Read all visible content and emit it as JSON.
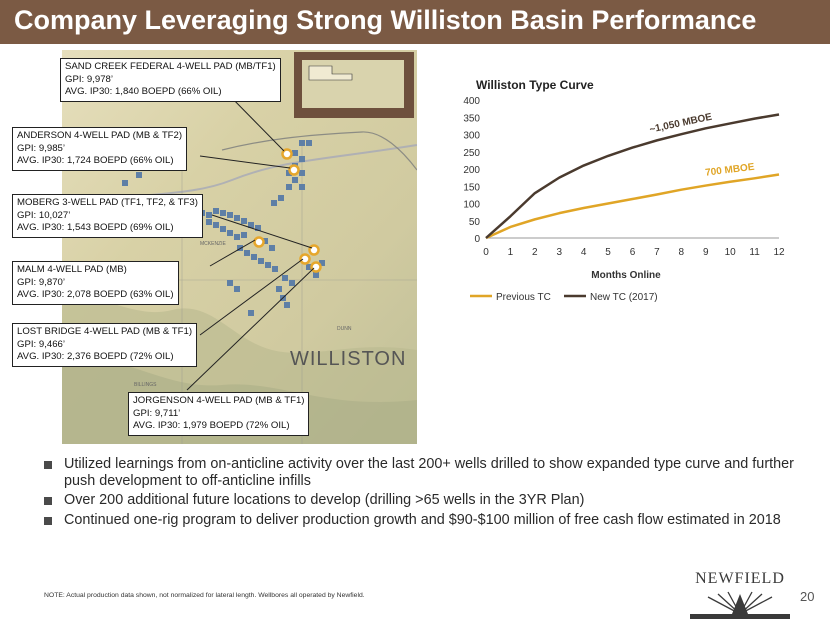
{
  "header": {
    "title": "Company Leveraging Strong Williston Basin Performance"
  },
  "map": {
    "basin_label": "WILLISTON",
    "county_mckenzie": "MCKENZIE",
    "county_dunn": "DUNN",
    "county_billings": "BILLINGS"
  },
  "callouts": [
    {
      "name": "SAND CREEK FEDERAL 4-WELL PAD (MB/TF1)",
      "gpi": "GPI: 9,978’",
      "ip30": "AVG. IP30: 1,840 BOEPD (66% OIL)"
    },
    {
      "name": "ANDERSON 4-WELL PAD (MB & TF2)",
      "gpi": "GPI: 9,985’",
      "ip30": "AVG. IP30: 1,724 BOEPD (66% OIL)"
    },
    {
      "name": "MOBERG 3-WELL PAD (TF1, TF2, & TF3)",
      "gpi": "GPI: 10,027’",
      "ip30": "AVG. IP30: 1,543 BOEPD (69% OIL)"
    },
    {
      "name": "MALM 4-WELL PAD (MB)",
      "gpi": "GPI: 9,870’",
      "ip30": "AVG. IP30: 2,078 BOEPD (63% OIL)"
    },
    {
      "name": "LOST BRIDGE 4-WELL PAD (MB & TF1)",
      "gpi": "GPI: 9,466’",
      "ip30": "AVG. IP30: 2,376 BOEPD (72% OIL)"
    },
    {
      "name": "JORGENSON 4-WELL PAD (MB & TF1)",
      "gpi": "GPI: 9,711’",
      "ip30": "AVG. IP30: 1,979 BOEPD (72% OIL)"
    }
  ],
  "chart_data": {
    "type": "line",
    "title": "Williston Type Curve",
    "xlabel": "Months Online",
    "ylabel": "",
    "x": [
      0,
      1,
      2,
      3,
      4,
      5,
      6,
      7,
      8,
      9,
      10,
      11,
      12
    ],
    "xticks": [
      "0",
      "1",
      "2",
      "3",
      "4",
      "5",
      "6",
      "7",
      "8",
      "9",
      "10",
      "11",
      "12"
    ],
    "yticks": [
      "0",
      "50",
      "100",
      "150",
      "200",
      "250",
      "300",
      "350",
      "400"
    ],
    "ylim": [
      0,
      400
    ],
    "series": [
      {
        "name": "Previous TC",
        "color": "#e0a526",
        "values": [
          0,
          32,
          54,
          72,
          87,
          100,
          113,
          126,
          140,
          152,
          163,
          173,
          184
        ],
        "annotation": "700 MBOE"
      },
      {
        "name": "New TC (2017)",
        "color": "#4a3a2e",
        "values": [
          0,
          63,
          130,
          175,
          210,
          238,
          262,
          283,
          301,
          318,
          332,
          346,
          358
        ],
        "annotation": "~1,050 MBOE"
      }
    ],
    "legend_position": "bottom"
  },
  "bullets": [
    "Utilized learnings from on-anticline activity over the last 200+ wells drilled to show expanded type curve and further push development to off-anticline infills",
    "Over 200 additional future locations to develop (drilling >65 wells in the 3YR Plan)",
    "Continued one-rig program to deliver production growth and $90-$100 million of free cash flow estimated in 2018"
  ],
  "footer": {
    "note": "NOTE: Actual production data shown, not normalized for lateral length. Wellbores all operated by Newfield.",
    "logo": "NEWFIELD",
    "page": "20"
  }
}
